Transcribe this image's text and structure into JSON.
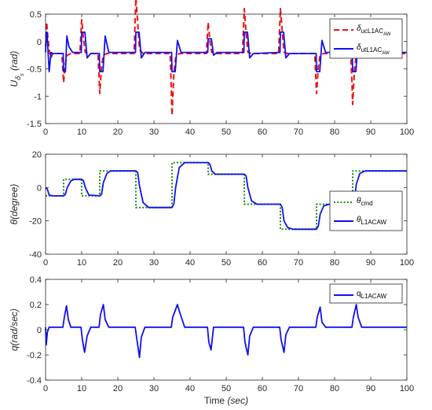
{
  "chart_data": [
    {
      "type": "line",
      "ylabel_main": "U",
      "ylabel_sub": "δ",
      "ylabel_subsub": "s",
      "ylabel_unit": "(rad)",
      "xlim": [
        0,
        100
      ],
      "ylim": [
        -1.5,
        0.5
      ],
      "xticks": [
        0,
        10,
        20,
        30,
        40,
        50,
        60,
        70,
        80,
        90,
        100
      ],
      "yticks": [
        -1.5,
        -1,
        -0.5,
        0,
        0.5
      ],
      "legend": "top-right",
      "series": [
        {
          "legend_main": "δ",
          "legend_sub": "uc",
          "legend_subsub": "L1AC",
          "legend_subsubsub": "AW",
          "color": "#ee1111",
          "dash": "dashed",
          "x": [
            0,
            0.3,
            0.6,
            1,
            1.5,
            2,
            4.5,
            5,
            5.5,
            6,
            7,
            9.5,
            10,
            10.5,
            11,
            12,
            14.5,
            15,
            15.5,
            16,
            17,
            24.5,
            25,
            25.5,
            26,
            27,
            34.5,
            35,
            35.5,
            36,
            37,
            44.5,
            45,
            45.5,
            46,
            47,
            54.5,
            55,
            55.5,
            56,
            57,
            64.5,
            65,
            65.5,
            66,
            67,
            74.5,
            75,
            75.5,
            76,
            77,
            84.5,
            85,
            85.5,
            86,
            87,
            100
          ],
          "y": [
            -0.1,
            0.35,
            0.1,
            -0.15,
            -0.3,
            -0.22,
            -0.22,
            -0.75,
            -0.4,
            -0.25,
            -0.22,
            -0.22,
            0.4,
            0.05,
            -0.2,
            -0.22,
            -0.22,
            -0.95,
            -0.45,
            -0.25,
            -0.22,
            -0.22,
            0.8,
            0.35,
            -0.15,
            -0.22,
            -0.22,
            -1.35,
            -0.6,
            -0.3,
            -0.22,
            -0.22,
            0.35,
            0,
            -0.2,
            -0.22,
            -0.22,
            0.6,
            0.15,
            -0.2,
            -0.22,
            -0.22,
            0.6,
            0.2,
            -0.2,
            -0.22,
            -0.22,
            -0.95,
            -0.45,
            -0.25,
            -0.22,
            -0.22,
            -1.15,
            -0.5,
            -0.25,
            -0.22,
            -0.22
          ]
        },
        {
          "legend_main": "δ",
          "legend_sub": "ut",
          "legend_subsub": "L1AC",
          "legend_subsubsub": "AW",
          "color": "#1111ee",
          "dash": "solid",
          "x": [
            0,
            0.2,
            0.4,
            1,
            1.5,
            2,
            2.5,
            4.9,
            5,
            5.5,
            5.9,
            6.5,
            7.5,
            9.9,
            10,
            10.9,
            11.5,
            12.5,
            14.9,
            15,
            15.9,
            16.5,
            17.5,
            24.9,
            25,
            25.9,
            26.5,
            27.5,
            34.9,
            35,
            35.9,
            36.5,
            37.5,
            44.9,
            45,
            45.9,
            46.5,
            47.5,
            54.9,
            55,
            55.9,
            56.5,
            57.5,
            64.9,
            65,
            65.9,
            66.5,
            67.5,
            74.9,
            75,
            75.9,
            76.5,
            77.5,
            84.9,
            85,
            85.9,
            86.5,
            87.5,
            100
          ],
          "y": [
            -0.2,
            0.17,
            0.17,
            -0.55,
            -0.2,
            -0.22,
            -0.22,
            -0.22,
            -0.55,
            -0.55,
            0.1,
            -0.1,
            -0.2,
            -0.2,
            0.17,
            0.17,
            -0.3,
            -0.22,
            -0.22,
            -0.55,
            -0.55,
            0.1,
            -0.2,
            -0.2,
            0.17,
            0.17,
            -0.3,
            -0.2,
            -0.2,
            -0.55,
            -0.55,
            0.02,
            -0.2,
            -0.2,
            0.05,
            0.05,
            -0.25,
            -0.2,
            -0.2,
            0.17,
            0.17,
            -0.3,
            -0.22,
            -0.2,
            0.17,
            0.17,
            -0.3,
            -0.22,
            -0.22,
            -0.55,
            -0.55,
            0.02,
            -0.2,
            -0.2,
            -0.55,
            -0.55,
            0.02,
            -0.2,
            -0.2
          ]
        }
      ]
    },
    {
      "type": "line",
      "ylabel": "θ(degree)",
      "xlim": [
        0,
        100
      ],
      "ylim": [
        -40,
        20
      ],
      "xticks": [
        0,
        10,
        20,
        30,
        40,
        50,
        60,
        70,
        80,
        90,
        100
      ],
      "yticks": [
        -40,
        -20,
        0,
        20
      ],
      "legend": "middle-right",
      "series": [
        {
          "legend_main": "θ",
          "legend_sub": "cmd",
          "color": "#1a8c1a",
          "dash": "dotted",
          "x": [
            0,
            5,
            5,
            10,
            10,
            15,
            15,
            25,
            25,
            35,
            35,
            45,
            45,
            55,
            55,
            65,
            65,
            75,
            75,
            85,
            85,
            100
          ],
          "y": [
            -5,
            -5,
            5,
            5,
            -5,
            -5,
            10,
            10,
            -12,
            -12,
            15,
            15,
            8,
            8,
            -10,
            -10,
            -25,
            -25,
            -10,
            -10,
            10,
            10
          ]
        },
        {
          "legend_main": "θ",
          "legend_sub": "L1AC",
          "legend_subsub": "AW",
          "color": "#1111ee",
          "dash": "solid",
          "x": [
            0,
            0.5,
            1,
            2,
            5,
            5.5,
            6,
            7,
            8,
            10,
            10.5,
            11,
            12,
            15,
            15.5,
            16,
            17,
            18,
            25,
            25.5,
            26,
            27,
            28.5,
            35,
            35.5,
            36,
            37,
            38.5,
            45,
            45.5,
            46,
            47,
            55,
            55.5,
            56,
            57,
            58.5,
            65,
            65.5,
            66,
            67,
            68.5,
            75,
            75.5,
            76,
            77,
            78.5,
            85,
            85.5,
            86,
            87,
            88.5,
            100
          ],
          "y": [
            0,
            -1,
            -4.5,
            -5,
            -5,
            -4,
            0,
            4,
            5,
            5,
            4,
            0,
            -4.5,
            -5,
            -4,
            3,
            8.5,
            10,
            10,
            9,
            1,
            -9,
            -12,
            -12,
            -10,
            0,
            12,
            15,
            15,
            14,
            10,
            8,
            8,
            7,
            0,
            -8,
            -10,
            -10,
            -12,
            -20,
            -24,
            -25,
            -25,
            -23,
            -16,
            -11,
            -10,
            -10,
            -8,
            2,
            8.5,
            10,
            10
          ]
        }
      ]
    },
    {
      "type": "line",
      "ylabel": "q(rad/sec)",
      "xlabel": "Time",
      "xlabel_unit": "(sec)",
      "xlim": [
        0,
        100
      ],
      "ylim": [
        -0.4,
        0.4
      ],
      "xticks": [
        0,
        10,
        20,
        30,
        40,
        50,
        60,
        70,
        80,
        90,
        100
      ],
      "yticks": [
        -0.4,
        -0.2,
        0,
        0.2,
        0.4
      ],
      "legend": "top-right",
      "series": [
        {
          "legend_main": "q",
          "legend_sub": "L1AC",
          "legend_subsub": "AW",
          "color": "#1111ee",
          "dash": "solid",
          "x": [
            0,
            0.2,
            0.5,
            1,
            1.5,
            4.8,
            5.2,
            5.8,
            6.3,
            7,
            9.8,
            10.2,
            10.8,
            11.5,
            12.5,
            14.8,
            15.2,
            16,
            16.5,
            17.5,
            24.8,
            25.2,
            26,
            26.5,
            27.5,
            34.8,
            35.2,
            36.5,
            37,
            38.5,
            44.8,
            45.2,
            45.8,
            46.5,
            54.8,
            55.2,
            56,
            56.5,
            57.5,
            64.8,
            65.2,
            66,
            66.5,
            67.5,
            74.8,
            75.2,
            76,
            76.5,
            77.5,
            84.8,
            85.2,
            86,
            86.5,
            87.5,
            100
          ],
          "y": [
            0.02,
            -0.12,
            -0.02,
            0.02,
            0.02,
            0.02,
            0.1,
            0.19,
            0.08,
            0.02,
            0.02,
            -0.08,
            -0.18,
            -0.05,
            0.02,
            0.02,
            0.12,
            0.2,
            0.08,
            0.02,
            0.02,
            -0.06,
            -0.22,
            -0.06,
            0.02,
            0.02,
            0.1,
            0.2,
            0.15,
            0.02,
            0.02,
            -0.1,
            -0.16,
            0.02,
            0.02,
            -0.1,
            -0.2,
            -0.05,
            0.02,
            0.02,
            -0.08,
            -0.18,
            -0.04,
            0.02,
            0.02,
            0.1,
            0.18,
            0.06,
            0.02,
            0.02,
            0.1,
            0.2,
            0.1,
            0.02,
            0.02
          ]
        }
      ]
    }
  ]
}
